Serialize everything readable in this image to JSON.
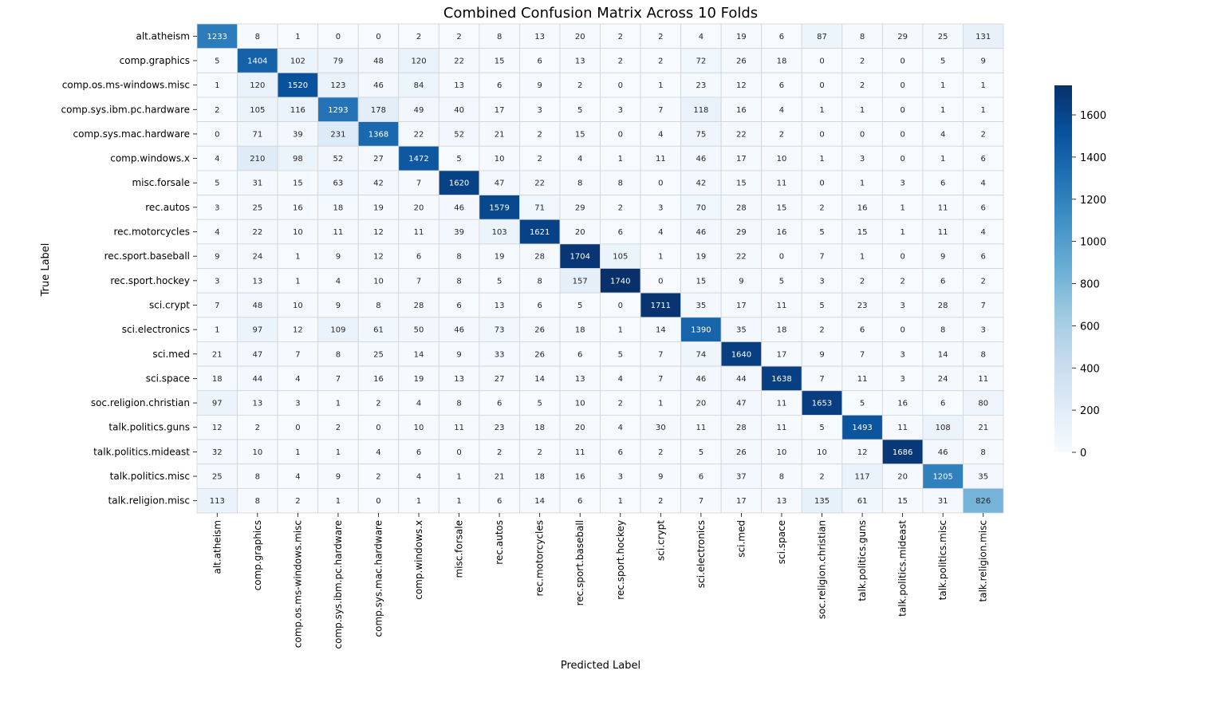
{
  "chart_data": {
    "type": "heatmap",
    "title": "Combined Confusion Matrix Across 10 Folds",
    "xlabel": "Predicted Label",
    "ylabel": "True Label",
    "labels": [
      "alt.atheism",
      "comp.graphics",
      "comp.os.ms-windows.misc",
      "comp.sys.ibm.pc.hardware",
      "comp.sys.mac.hardware",
      "comp.windows.x",
      "misc.forsale",
      "rec.autos",
      "rec.motorcycles",
      "rec.sport.baseball",
      "rec.sport.hockey",
      "sci.crypt",
      "sci.electronics",
      "sci.med",
      "sci.space",
      "soc.religion.christian",
      "talk.politics.guns",
      "talk.politics.mideast",
      "talk.politics.misc",
      "talk.religion.misc"
    ],
    "matrix": [
      [
        1233,
        8,
        1,
        0,
        0,
        2,
        2,
        8,
        13,
        20,
        2,
        2,
        4,
        19,
        6,
        87,
        8,
        29,
        25,
        131
      ],
      [
        5,
        1404,
        102,
        79,
        48,
        120,
        22,
        15,
        6,
        13,
        2,
        2,
        72,
        26,
        18,
        0,
        2,
        0,
        5,
        9
      ],
      [
        1,
        120,
        1520,
        123,
        46,
        84,
        13,
        6,
        9,
        2,
        0,
        1,
        23,
        12,
        6,
        0,
        2,
        0,
        1,
        1
      ],
      [
        2,
        105,
        116,
        1293,
        178,
        49,
        40,
        17,
        3,
        5,
        3,
        7,
        118,
        16,
        4,
        1,
        1,
        0,
        1,
        1
      ],
      [
        0,
        71,
        39,
        231,
        1368,
        22,
        52,
        21,
        2,
        15,
        0,
        4,
        75,
        22,
        2,
        0,
        0,
        0,
        4,
        2
      ],
      [
        4,
        210,
        98,
        52,
        27,
        1472,
        5,
        10,
        2,
        4,
        1,
        11,
        46,
        17,
        10,
        1,
        3,
        0,
        1,
        6
      ],
      [
        5,
        31,
        15,
        63,
        42,
        7,
        1620,
        47,
        22,
        8,
        8,
        0,
        42,
        15,
        11,
        0,
        1,
        3,
        6,
        4
      ],
      [
        3,
        25,
        16,
        18,
        19,
        20,
        46,
        1579,
        71,
        29,
        2,
        3,
        70,
        28,
        15,
        2,
        16,
        1,
        11,
        6
      ],
      [
        4,
        22,
        10,
        11,
        12,
        11,
        39,
        103,
        1621,
        20,
        6,
        4,
        46,
        29,
        16,
        5,
        15,
        1,
        11,
        4
      ],
      [
        9,
        24,
        1,
        9,
        12,
        6,
        8,
        19,
        28,
        1704,
        105,
        1,
        19,
        22,
        0,
        7,
        1,
        0,
        9,
        6
      ],
      [
        3,
        13,
        1,
        4,
        10,
        7,
        8,
        5,
        8,
        157,
        1740,
        0,
        15,
        9,
        5,
        3,
        2,
        2,
        6,
        2
      ],
      [
        7,
        48,
        10,
        9,
        8,
        28,
        6,
        13,
        6,
        5,
        0,
        1711,
        35,
        17,
        11,
        5,
        23,
        3,
        28,
        7
      ],
      [
        1,
        97,
        12,
        109,
        61,
        50,
        46,
        73,
        26,
        18,
        1,
        14,
        1390,
        35,
        18,
        2,
        6,
        0,
        8,
        3
      ],
      [
        21,
        47,
        7,
        8,
        25,
        14,
        9,
        33,
        26,
        6,
        5,
        7,
        74,
        1640,
        17,
        9,
        7,
        3,
        14,
        8
      ],
      [
        18,
        44,
        4,
        7,
        16,
        19,
        13,
        27,
        14,
        13,
        4,
        7,
        46,
        44,
        1638,
        7,
        11,
        3,
        24,
        11
      ],
      [
        97,
        13,
        3,
        1,
        2,
        4,
        8,
        6,
        5,
        10,
        2,
        1,
        20,
        47,
        11,
        1653,
        5,
        16,
        6,
        80
      ],
      [
        12,
        2,
        0,
        2,
        0,
        10,
        11,
        23,
        18,
        20,
        4,
        30,
        11,
        28,
        11,
        5,
        1493,
        11,
        108,
        21
      ],
      [
        32,
        10,
        1,
        1,
        4,
        6,
        0,
        2,
        2,
        11,
        6,
        2,
        5,
        26,
        10,
        10,
        12,
        1686,
        46,
        8
      ],
      [
        25,
        8,
        4,
        9,
        2,
        4,
        1,
        21,
        18,
        16,
        3,
        9,
        6,
        37,
        8,
        2,
        117,
        20,
        1205,
        35
      ],
      [
        113,
        8,
        2,
        1,
        0,
        1,
        1,
        6,
        14,
        6,
        1,
        2,
        7,
        17,
        13,
        135,
        61,
        15,
        31,
        826
      ]
    ],
    "colormap": "Blues",
    "vmin": 0,
    "vmax": 1740,
    "colorbar_ticks": [
      0,
      200,
      400,
      600,
      800,
      1000,
      1200,
      1400,
      1600
    ],
    "grid": true,
    "annotations": true
  }
}
